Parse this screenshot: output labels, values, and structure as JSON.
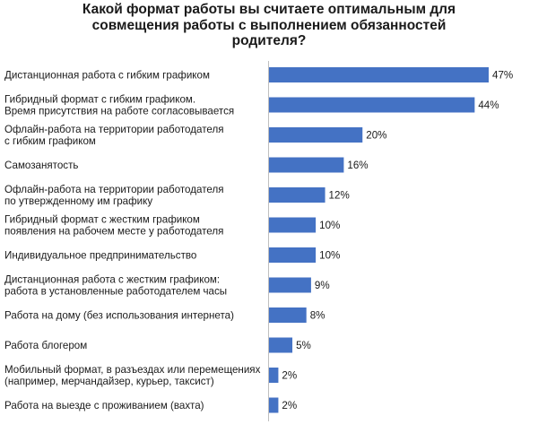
{
  "chart_data": {
    "type": "bar",
    "orientation": "horizontal",
    "title_lines": [
      "Какой формат работы вы считаете оптимальным для",
      "совмещения работы с выполнением обязанностей",
      "родителя?"
    ],
    "categories": [
      [
        "Дистанционная работа с гибким графиком"
      ],
      [
        "Гибридный формат с гибким графиком.",
        "Время присутствия на работе согласовывается"
      ],
      [
        "Офлайн-работа на территории работодателя",
        "с гибким графиком"
      ],
      [
        "Самозанятость"
      ],
      [
        "Офлайн-работа на территории работодателя",
        "по утвержденному им графику"
      ],
      [
        "Гибридный формат с жестким графиком",
        "появления на рабочем месте у работодателя"
      ],
      [
        "Индивидуальное предпринимательство"
      ],
      [
        "Дистанционная работа с жестким графиком:",
        "работа в установленные работодателем часы"
      ],
      [
        "Работа на дому (без использования интернета)"
      ],
      [
        "Работа блогером"
      ],
      [
        "Мобильный формат, в разъездах или перемещениях",
        "(например, мерчандайзер, курьер, таксист)"
      ],
      [
        "Работа на выезде с проживанием (вахта)"
      ]
    ],
    "values": [
      47,
      44,
      20,
      16,
      12,
      10,
      10,
      9,
      8,
      5,
      2,
      2
    ],
    "value_labels": [
      "47%",
      "44%",
      "20%",
      "16%",
      "12%",
      "10%",
      "10%",
      "9%",
      "8%",
      "5%",
      "2%",
      "2%"
    ],
    "unit": "%",
    "bar_color": "#4472C4",
    "axis_line_color": "#BFBFBF",
    "grid": false,
    "legend": "none"
  }
}
